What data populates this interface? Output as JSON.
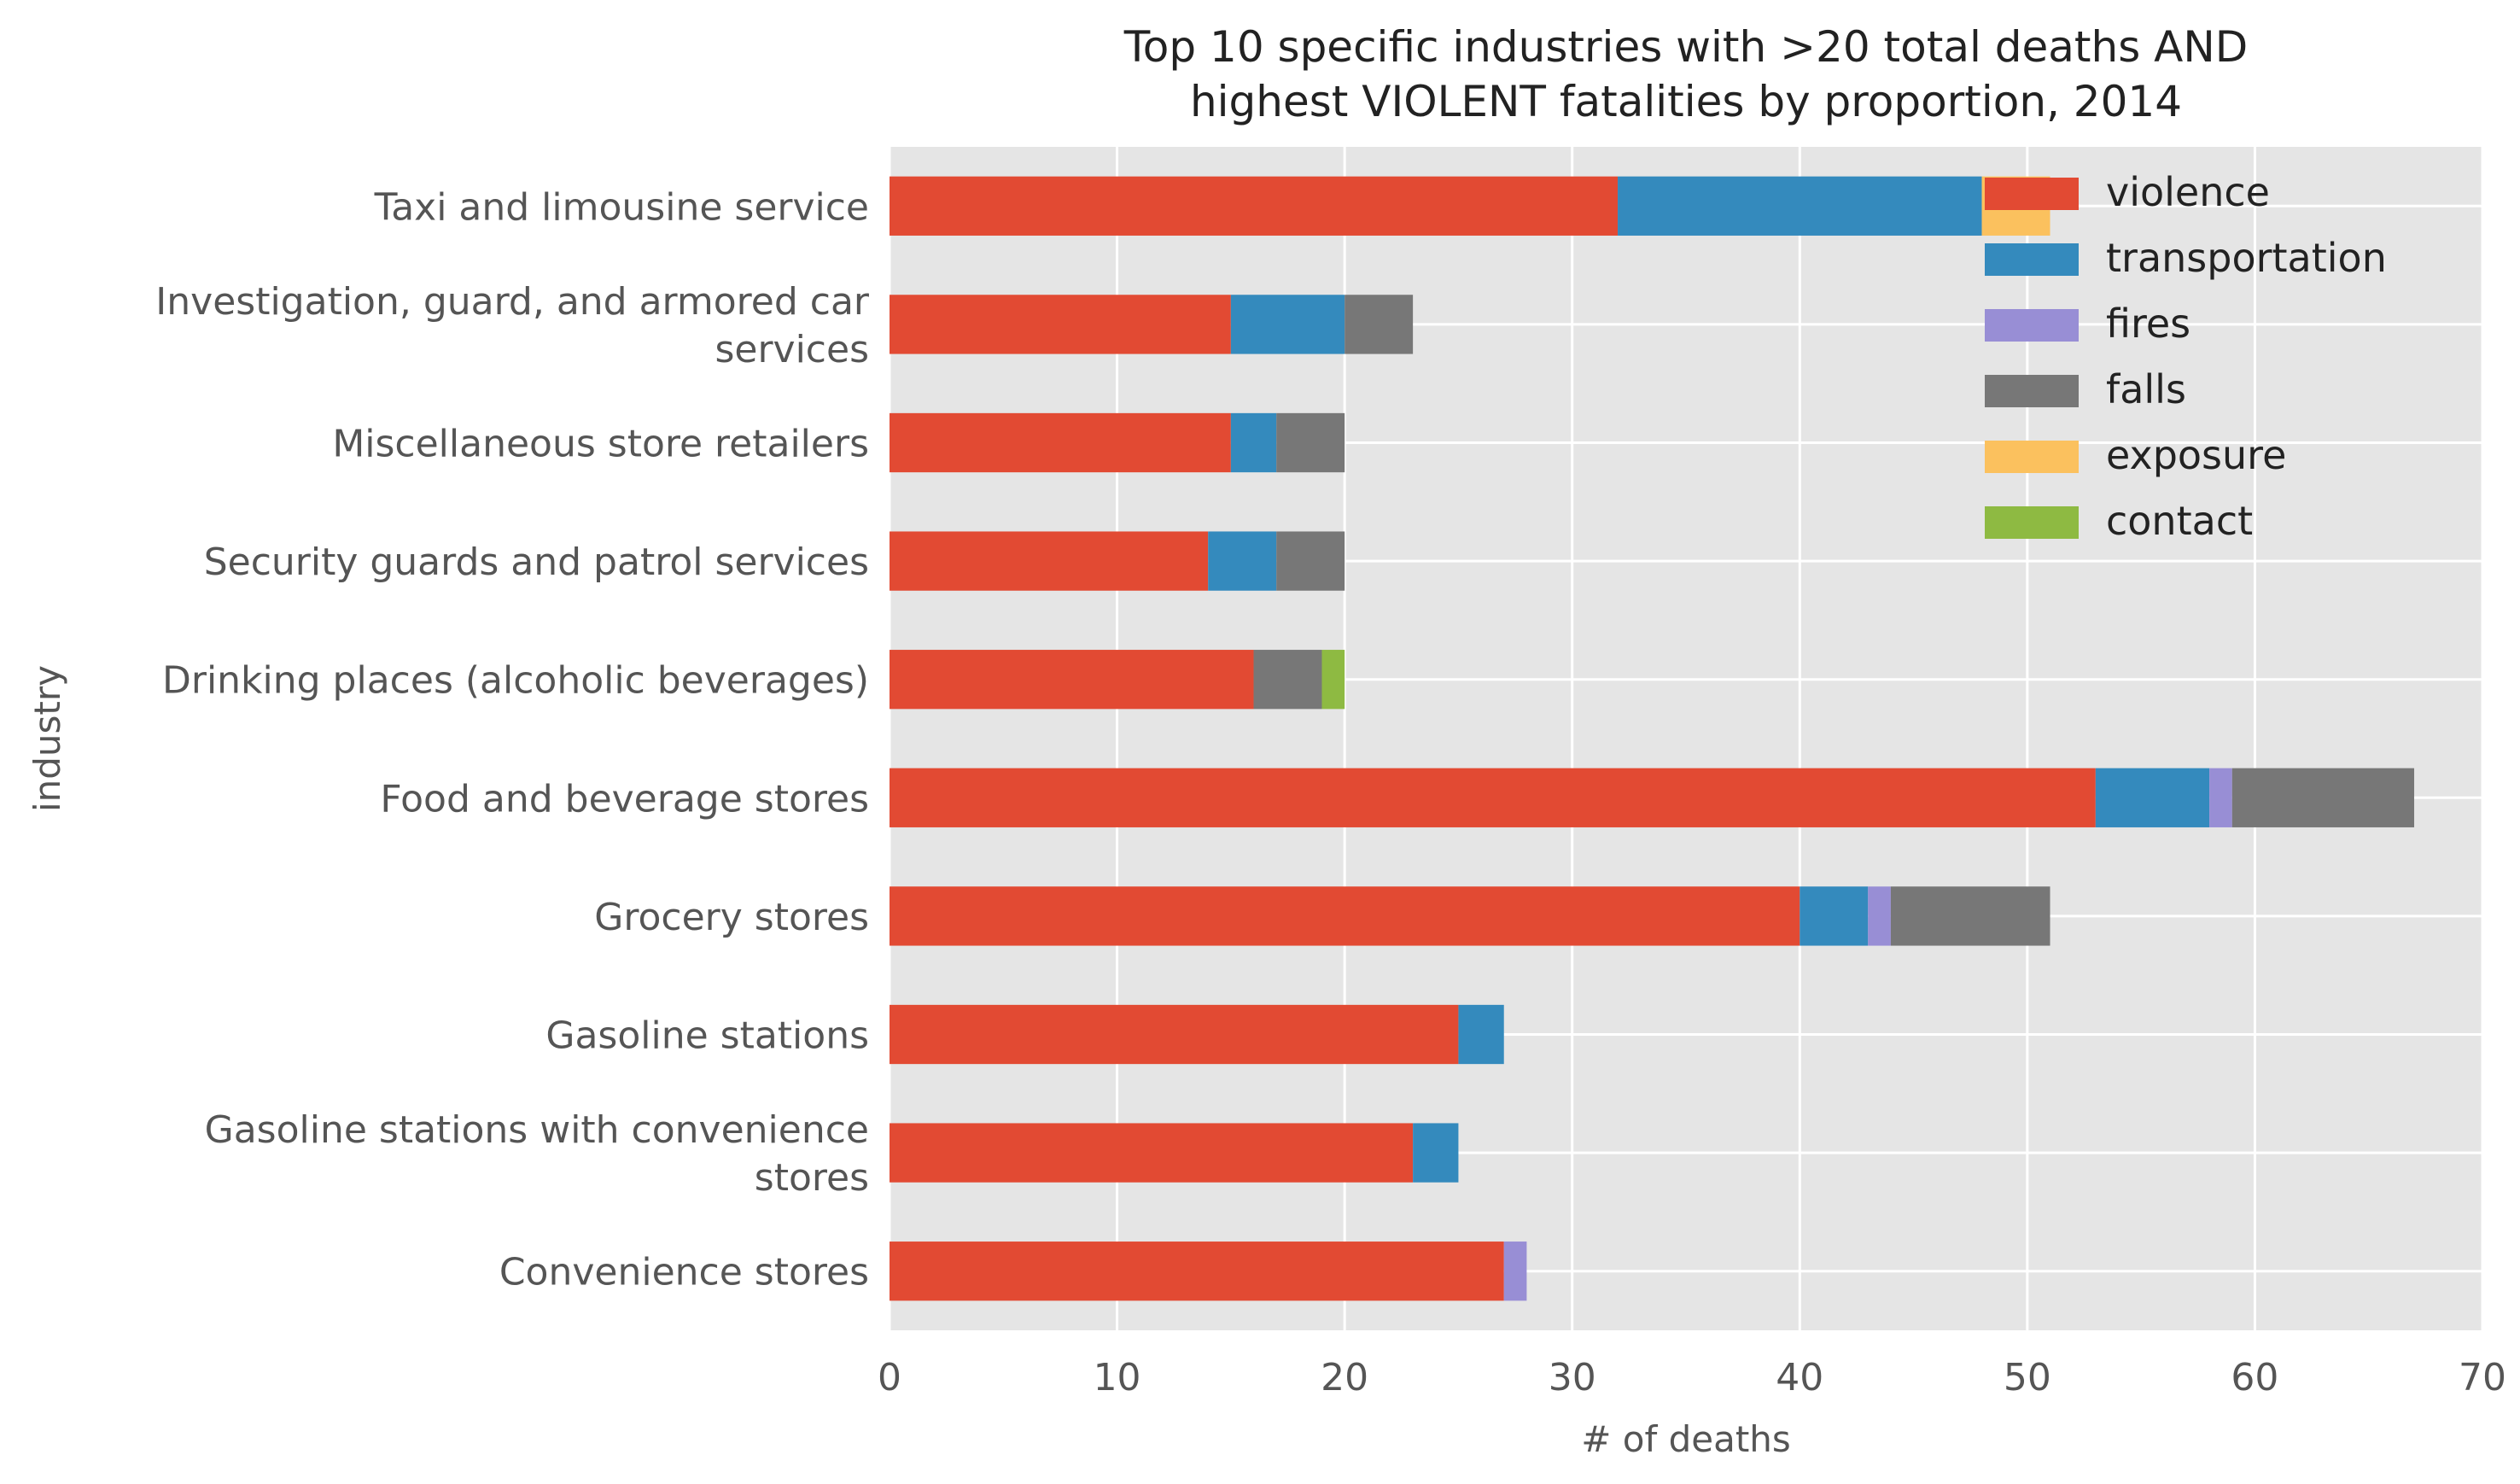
{
  "chart_data": {
    "type": "bar",
    "orientation": "horizontal",
    "stacked": true,
    "title": [
      "Top 10 specific industries with >20 total deaths AND",
      "highest VIOLENT fatalities by proportion, 2014"
    ],
    "xlabel": "# of deaths",
    "ylabel": "industry",
    "xlim": [
      0,
      70
    ],
    "xticks": [
      "0",
      "10",
      "20",
      "30",
      "40",
      "50",
      "60",
      "70"
    ],
    "grid": true,
    "legend_position": "top-right",
    "categories": [
      [
        "Taxi and limousine service"
      ],
      [
        "Investigation, guard, and armored car",
        "services"
      ],
      [
        "Miscellaneous store retailers"
      ],
      [
        "Security guards and patrol services"
      ],
      [
        "Drinking places (alcoholic beverages)"
      ],
      [
        "Food and beverage stores"
      ],
      [
        "Grocery stores"
      ],
      [
        "Gasoline stations"
      ],
      [
        "Gasoline stations with convenience",
        "stores"
      ],
      [
        "Convenience stores"
      ]
    ],
    "series": [
      {
        "name": "violence",
        "color": "#E24A33",
        "values": [
          32,
          15,
          15,
          14,
          16,
          53,
          40,
          25,
          23,
          27
        ]
      },
      {
        "name": "transportation",
        "color": "#348ABD",
        "values": [
          16,
          5,
          2,
          3,
          0,
          5,
          3,
          2,
          2,
          0
        ]
      },
      {
        "name": "fires",
        "color": "#988ED5",
        "values": [
          0,
          0,
          0,
          0,
          0,
          1,
          1,
          0,
          0,
          1
        ]
      },
      {
        "name": "falls",
        "color": "#777777",
        "values": [
          0,
          3,
          3,
          3,
          3,
          8,
          7,
          0,
          0,
          0
        ]
      },
      {
        "name": "exposure",
        "color": "#FBC15E",
        "values": [
          3,
          0,
          0,
          0,
          0,
          0,
          0,
          0,
          0,
          0
        ]
      },
      {
        "name": "contact",
        "color": "#8EBA42",
        "values": [
          0,
          0,
          0,
          0,
          1,
          0,
          0,
          0,
          0,
          0
        ]
      }
    ]
  }
}
